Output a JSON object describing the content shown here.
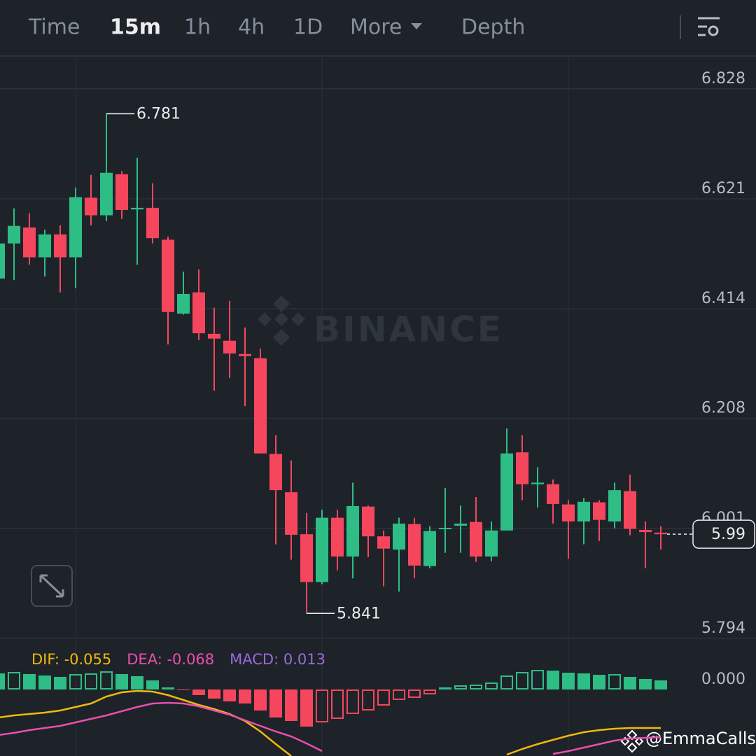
{
  "tabs": [
    "Time",
    "15m",
    "1h",
    "4h",
    "1D",
    "More",
    "Depth"
  ],
  "active_tab": 1,
  "watermark": "BINANCE",
  "handle": "@EmmaCalls",
  "chart_data": {
    "type": "candlestick",
    "up_color": "#2ebd85",
    "down_color": "#f6465d",
    "ylim": [
      5.794,
      6.887
    ],
    "yticks": [
      6.828,
      6.621,
      6.414,
      6.208,
      6.001,
      5.794
    ],
    "grid": true,
    "open": [
      6.471,
      6.537,
      6.567,
      6.511,
      6.554,
      6.511,
      6.623,
      6.59,
      6.667,
      6.601,
      6.604,
      6.544,
      6.405,
      6.445,
      6.367,
      6.354,
      6.329,
      6.321,
      6.141,
      6.069,
      5.99,
      5.9,
      6.021,
      5.948,
      6.042,
      5.986,
      5.961,
      6.009,
      5.93,
      6.0,
      6.006,
      6.013,
      5.948,
      5.997,
      6.144,
      6.084,
      6.084,
      6.046,
      6.014,
      6.05,
      6.014,
      6.071,
      5.998,
      5.993
    ],
    "high": [
      6.6,
      6.603,
      6.594,
      6.563,
      6.571,
      6.642,
      6.666,
      6.781,
      6.673,
      6.698,
      6.65,
      6.55,
      6.484,
      6.488,
      6.416,
      6.429,
      6.379,
      6.339,
      6.176,
      6.129,
      6.03,
      6.036,
      6.036,
      6.087,
      6.044,
      5.997,
      6.021,
      6.021,
      6.005,
      6.077,
      6.044,
      6.06,
      6.014,
      6.189,
      6.176,
      6.116,
      6.093,
      6.054,
      6.058,
      6.054,
      6.087,
      6.102,
      6.014,
      6.005
    ],
    "low": [
      6.442,
      6.468,
      6.497,
      6.475,
      6.445,
      6.453,
      6.571,
      6.579,
      6.583,
      6.497,
      6.537,
      6.347,
      6.403,
      6.355,
      6.26,
      6.284,
      6.231,
      6.142,
      5.971,
      5.942,
      5.841,
      5.896,
      5.922,
      5.907,
      5.947,
      5.892,
      5.882,
      5.907,
      5.926,
      5.955,
      5.955,
      5.938,
      5.939,
      5.997,
      6.054,
      6.04,
      6.01,
      5.944,
      5.971,
      5.977,
      6.001,
      5.988,
      5.926,
      5.961
    ],
    "close": [
      6.537,
      6.57,
      6.511,
      6.554,
      6.511,
      6.624,
      6.59,
      6.67,
      6.6,
      6.604,
      6.547,
      6.408,
      6.442,
      6.368,
      6.358,
      6.33,
      6.325,
      6.142,
      6.073,
      5.989,
      5.9,
      6.021,
      5.948,
      6.043,
      5.986,
      5.963,
      6.01,
      5.931,
      5.996,
      6.002,
      6.01,
      5.948,
      5.997,
      6.142,
      6.084,
      6.087,
      6.047,
      6.014,
      6.051,
      6.017,
      6.073,
      6.0,
      5.994,
      5.99
    ],
    "macd": {
      "ylim": [
        -0.095,
        0.073
      ],
      "yticks": [
        {
          "value": 0,
          "label": "0.000"
        }
      ],
      "legend": [
        {
          "label": "DIF: -0.055",
          "color": "#f0b90b"
        },
        {
          "label": "DEA: -0.068",
          "color": "#e84fb0"
        },
        {
          "label": "MACD: 0.013",
          "color": "#9c6ade"
        }
      ],
      "histogram": [
        0.023,
        0.025,
        0.022,
        0.02,
        0.018,
        0.022,
        0.023,
        0.026,
        0.022,
        0.019,
        0.013,
        0.003,
        -0.001,
        -0.008,
        -0.013,
        -0.017,
        -0.02,
        -0.03,
        -0.04,
        -0.045,
        -0.053,
        -0.047,
        -0.042,
        -0.035,
        -0.03,
        -0.023,
        -0.015,
        -0.012,
        -0.007,
        0.003,
        0.006,
        0.007,
        0.01,
        0.02,
        0.025,
        0.028,
        0.027,
        0.024,
        0.023,
        0.021,
        0.022,
        0.018,
        0.015,
        0.013
      ],
      "dif": [
        -0.04,
        -0.037,
        -0.035,
        -0.033,
        -0.03,
        -0.025,
        -0.02,
        -0.01,
        -0.004,
        -0.002,
        -0.003,
        -0.008,
        -0.015,
        -0.022,
        -0.028,
        -0.035,
        -0.045,
        -0.06,
        -0.078,
        -0.095,
        null,
        null,
        null,
        null,
        null,
        null,
        null,
        null,
        null,
        null,
        null,
        null,
        null,
        -0.093,
        -0.085,
        -0.078,
        -0.072,
        -0.066,
        -0.061,
        -0.058,
        -0.056,
        -0.055,
        -0.055,
        -0.055
      ],
      "dea": [
        -0.065,
        -0.062,
        -0.058,
        -0.055,
        -0.052,
        -0.047,
        -0.042,
        -0.037,
        -0.031,
        -0.025,
        -0.02,
        -0.019,
        -0.02,
        -0.024,
        -0.03,
        -0.036,
        -0.044,
        -0.052,
        -0.06,
        -0.067,
        -0.077,
        -0.088,
        null,
        null,
        null,
        null,
        null,
        null,
        null,
        null,
        null,
        null,
        null,
        null,
        null,
        null,
        -0.092,
        -0.088,
        -0.083,
        -0.078,
        -0.073,
        -0.07,
        -0.069,
        -0.068
      ]
    }
  }
}
